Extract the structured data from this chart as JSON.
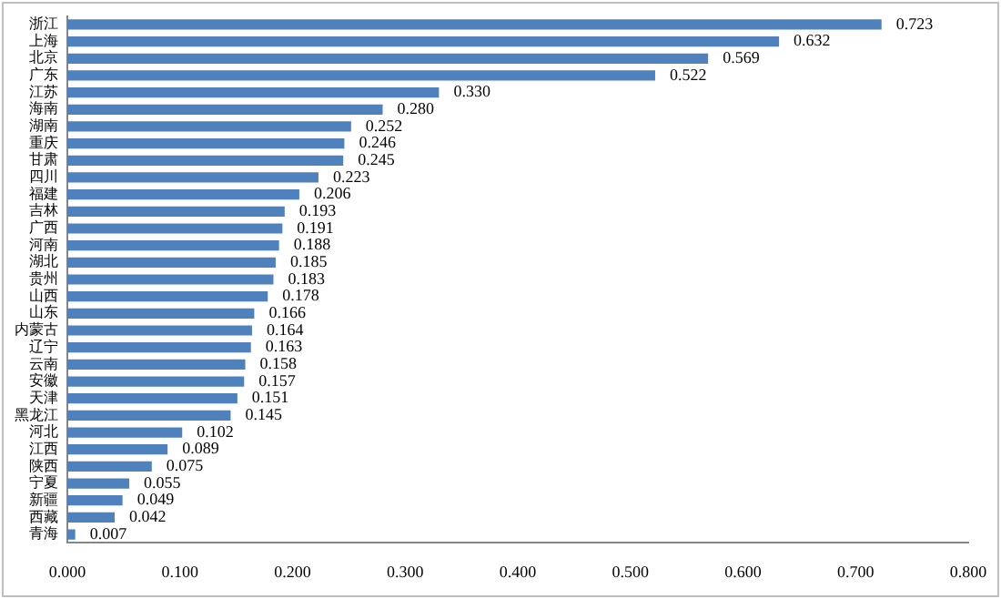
{
  "chart_data": {
    "type": "bar",
    "orientation": "horizontal",
    "categories": [
      "浙江",
      "上海",
      "北京",
      "广东",
      "江苏",
      "海南",
      "湖南",
      "重庆",
      "甘肃",
      "四川",
      "福建",
      "吉林",
      "广西",
      "河南",
      "湖北",
      "贵州",
      "山西",
      "山东",
      "内蒙古",
      "辽宁",
      "云南",
      "安徽",
      "天津",
      "黑龙江",
      "河北",
      "江西",
      "陕西",
      "宁夏",
      "新疆",
      "西藏",
      "青海"
    ],
    "values": [
      0.723,
      0.632,
      0.569,
      0.522,
      0.33,
      0.28,
      0.252,
      0.246,
      0.245,
      0.223,
      0.206,
      0.193,
      0.191,
      0.188,
      0.185,
      0.183,
      0.178,
      0.166,
      0.164,
      0.163,
      0.158,
      0.157,
      0.151,
      0.145,
      0.102,
      0.089,
      0.075,
      0.055,
      0.049,
      0.042,
      0.007
    ],
    "value_labels": [
      "0.723",
      "0.632",
      "0.569",
      "0.522",
      "0.330",
      "0.280",
      "0.252",
      "0.246",
      "0.245",
      "0.223",
      "0.206",
      "0.193",
      "0.191",
      "0.188",
      "0.185",
      "0.183",
      "0.178",
      "0.166",
      "0.164",
      "0.163",
      "0.158",
      "0.157",
      "0.151",
      "0.145",
      "0.102",
      "0.089",
      "0.075",
      "0.055",
      "0.049",
      "0.042",
      "0.007"
    ],
    "color": "#4f81bd",
    "xlim": [
      0,
      0.8
    ],
    "xticks": [
      {
        "value": 0,
        "label": "0.000"
      },
      {
        "value": 0.1,
        "label": "0.100"
      },
      {
        "value": 0.2,
        "label": "0.200"
      },
      {
        "value": 0.3,
        "label": "0.300"
      },
      {
        "value": 0.4,
        "label": "0.400"
      },
      {
        "value": 0.5,
        "label": "0.500"
      },
      {
        "value": 0.6,
        "label": "0.600"
      },
      {
        "value": 0.7,
        "label": "0.700"
      },
      {
        "value": 0.8,
        "label": "0.800"
      }
    ],
    "grid": false,
    "legend": false
  }
}
